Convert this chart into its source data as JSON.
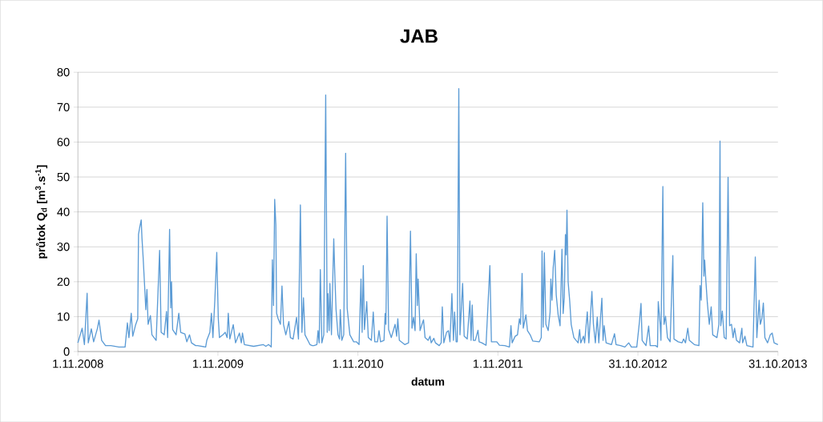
{
  "chart_data": {
    "type": "line",
    "title": "JAB",
    "xlabel": "datum",
    "ylabel": "průtok Q$_{d}$ [m$^{3}$.s$^{-1}$]",
    "color": "#5b9bd5",
    "grid": "y",
    "xlim": [
      "2008-11-01",
      "2013-10-31"
    ],
    "ylim": [
      0,
      80
    ],
    "yticks": [
      0,
      10,
      20,
      30,
      40,
      50,
      60,
      70,
      80
    ],
    "xticks": [
      {
        "value": "2008-11-01",
        "label": "1.11.2008"
      },
      {
        "value": "2009-11-01",
        "label": "1.11.2009"
      },
      {
        "value": "2010-11-01",
        "label": "1.11.2010"
      },
      {
        "value": "2011-11-01",
        "label": "1.11.2011"
      },
      {
        "value": "2012-10-31",
        "label": "31.10.2012"
      },
      {
        "value": "2013-10-31",
        "label": "31.10.2013"
      }
    ],
    "x": [
      "2008-11-01",
      "2008-11-12",
      "2008-11-18",
      "2008-11-25",
      "2008-11-28",
      "2008-12-06",
      "2008-12-12",
      "2008-12-22",
      "2008-12-26",
      "2009-01-02",
      "2009-01-12",
      "2009-01-26",
      "2009-02-16",
      "2009-03-04",
      "2009-03-10",
      "2009-03-14",
      "2009-03-20",
      "2009-03-24",
      "2009-03-31",
      "2009-04-06",
      "2009-04-08",
      "2009-04-11",
      "2009-04-15",
      "2009-04-17",
      "2009-04-20",
      "2009-04-24",
      "2009-04-27",
      "2009-04-30",
      "2009-05-03",
      "2009-05-09",
      "2009-05-13",
      "2009-05-24",
      "2009-06-02",
      "2009-06-06",
      "2009-06-14",
      "2009-06-20",
      "2009-06-23",
      "2009-06-28",
      "2009-07-01",
      "2009-07-03",
      "2009-07-06",
      "2009-07-15",
      "2009-07-22",
      "2009-07-27",
      "2009-08-07",
      "2009-08-12",
      "2009-08-19",
      "2009-08-24",
      "2009-09-04",
      "2009-09-09",
      "2009-09-30",
      "2009-10-03",
      "2009-10-11",
      "2009-10-15",
      "2009-10-19",
      "2009-10-24",
      "2009-10-29",
      "2009-11-02",
      "2009-11-05",
      "2009-11-14",
      "2009-11-20",
      "2009-11-25",
      "2009-11-28",
      "2009-12-02",
      "2009-12-11",
      "2009-12-17",
      "2009-12-27",
      "2010-01-01",
      "2010-01-04",
      "2010-01-09",
      "2010-02-02",
      "2010-02-27",
      "2010-03-06",
      "2010-03-13",
      "2010-03-20",
      "2010-03-23",
      "2010-03-26",
      "2010-03-29",
      "2010-04-01",
      "2010-04-03",
      "2010-04-07",
      "2010-04-13",
      "2010-04-17",
      "2010-04-21",
      "2010-04-27",
      "2010-05-05",
      "2010-05-09",
      "2010-05-16",
      "2010-05-25",
      "2010-05-30",
      "2010-06-04",
      "2010-06-08",
      "2010-06-12",
      "2010-06-16",
      "2010-06-29",
      "2010-07-05",
      "2010-07-09",
      "2010-07-17",
      "2010-07-20",
      "2010-07-23",
      "2010-07-26",
      "2010-07-30",
      "2010-08-04",
      "2010-08-09",
      "2010-08-13",
      "2010-08-15",
      "2010-08-18",
      "2010-08-20",
      "2010-08-24",
      "2010-08-30",
      "2010-09-02",
      "2010-09-05",
      "2010-09-10",
      "2010-09-14",
      "2010-09-16",
      "2010-09-20",
      "2010-09-25",
      "2010-09-30",
      "2010-10-04",
      "2010-10-11",
      "2010-10-21",
      "2010-10-28",
      "2010-11-04",
      "2010-11-09",
      "2010-11-12",
      "2010-11-15",
      "2010-11-18",
      "2010-11-24",
      "2010-11-28",
      "2010-12-06",
      "2010-12-11",
      "2010-12-15",
      "2010-12-22",
      "2010-12-26",
      "2010-12-30",
      "2011-01-08",
      "2011-01-11",
      "2011-01-13",
      "2011-01-16",
      "2011-01-20",
      "2011-01-27",
      "2011-02-06",
      "2011-02-10",
      "2011-02-13",
      "2011-02-17",
      "2011-03-03",
      "2011-03-13",
      "2011-03-18",
      "2011-03-22",
      "2011-03-26",
      "2011-03-30",
      "2011-04-02",
      "2011-04-05",
      "2011-04-07",
      "2011-04-12",
      "2011-04-17",
      "2011-04-21",
      "2011-04-25",
      "2011-05-03",
      "2011-05-08",
      "2011-05-11",
      "2011-05-18",
      "2011-05-22",
      "2011-06-01",
      "2011-06-06",
      "2011-06-09",
      "2011-06-13",
      "2011-06-20",
      "2011-06-25",
      "2011-06-29",
      "2011-07-04",
      "2011-07-08",
      "2011-07-11",
      "2011-07-15",
      "2011-07-18",
      "2011-07-22",
      "2011-07-25",
      "2011-08-01",
      "2011-08-05",
      "2011-08-13",
      "2011-08-20",
      "2011-08-23",
      "2011-08-26",
      "2011-08-29",
      "2011-09-03",
      "2011-09-10",
      "2011-09-13",
      "2011-09-20",
      "2011-10-01",
      "2011-10-11",
      "2011-10-15",
      "2011-10-29",
      "2011-11-05",
      "2011-11-19",
      "2011-12-01",
      "2011-12-05",
      "2011-12-08",
      "2011-12-16",
      "2011-12-22",
      "2011-12-27",
      "2011-12-30",
      "2012-01-03",
      "2012-01-06",
      "2012-01-13",
      "2012-01-17",
      "2012-01-24",
      "2012-01-31",
      "2012-02-17",
      "2012-02-22",
      "2012-02-24",
      "2012-02-27",
      "2012-03-01",
      "2012-03-05",
      "2012-03-11",
      "2012-03-16",
      "2012-03-18",
      "2012-03-21",
      "2012-03-24",
      "2012-03-28",
      "2012-04-01",
      "2012-04-06",
      "2012-04-11",
      "2012-04-16",
      "2012-04-19",
      "2012-04-22",
      "2012-04-25",
      "2012-04-27",
      "2012-04-29",
      "2012-05-02",
      "2012-05-06",
      "2012-05-10",
      "2012-05-17",
      "2012-05-28",
      "2012-06-01",
      "2012-06-04",
      "2012-06-11",
      "2012-06-14",
      "2012-06-21",
      "2012-06-25",
      "2012-07-03",
      "2012-07-07",
      "2012-07-12",
      "2012-07-17",
      "2012-07-21",
      "2012-07-29",
      "2012-08-01",
      "2012-08-04",
      "2012-08-09",
      "2012-08-23",
      "2012-08-31",
      "2012-09-04",
      "2012-09-16",
      "2012-09-27",
      "2012-10-07",
      "2012-10-14",
      "2012-10-28",
      "2012-11-04",
      "2012-11-08",
      "2012-11-11",
      "2012-11-21",
      "2012-11-28",
      "2012-12-02",
      "2012-12-16",
      "2012-12-21",
      "2012-12-23",
      "2012-12-28",
      "2012-12-30",
      "2013-01-04",
      "2013-01-07",
      "2013-01-11",
      "2013-01-16",
      "2013-01-23",
      "2013-01-30",
      "2013-02-02",
      "2013-02-13",
      "2013-02-23",
      "2013-02-27",
      "2013-03-04",
      "2013-03-10",
      "2013-03-14",
      "2013-03-27",
      "2013-04-08",
      "2013-04-11",
      "2013-04-14",
      "2013-04-18",
      "2013-04-21",
      "2013-04-23",
      "2013-04-26",
      "2013-04-30",
      "2013-05-05",
      "2013-05-10",
      "2013-05-14",
      "2013-05-25",
      "2013-05-30",
      "2013-06-02",
      "2013-06-04",
      "2013-06-08",
      "2013-06-13",
      "2013-06-18",
      "2013-06-23",
      "2013-06-27",
      "2013-07-02",
      "2013-07-06",
      "2013-07-10",
      "2013-07-15",
      "2013-07-23",
      "2013-07-29",
      "2013-07-31",
      "2013-08-06",
      "2013-08-11",
      "2013-08-27",
      "2013-09-02",
      "2013-09-06",
      "2013-09-12",
      "2013-09-15",
      "2013-09-19",
      "2013-09-23",
      "2013-09-27",
      "2013-10-04",
      "2013-10-11",
      "2013-10-16",
      "2013-10-21",
      "2013-10-31"
    ],
    "values": [
      2.5,
      6.7,
      2,
      16.7,
      2.5,
      6.5,
      2.8,
      6.7,
      9,
      3.2,
      1.7,
      1.7,
      1.3,
      1.3,
      8.2,
      4,
      11,
      4.4,
      7.5,
      9.4,
      33.6,
      35.5,
      37.7,
      32.5,
      27,
      18.6,
      12,
      17.8,
      7.8,
      10.3,
      4.8,
      3.2,
      29,
      5.5,
      4.8,
      11.5,
      4,
      35,
      12.5,
      20,
      6.3,
      4.8,
      11,
      5.5,
      5,
      2.8,
      4.8,
      2.5,
      1.7,
      1.7,
      1.3,
      3.2,
      5.5,
      11,
      4,
      14.8,
      28.4,
      9.4,
      4,
      4.8,
      5.5,
      4,
      11,
      3.6,
      7.7,
      2.5,
      5.3,
      2.5,
      5.3,
      2,
      1.5,
      2,
      1.5,
      2,
      1.3,
      26.3,
      13.2,
      43.6,
      36.3,
      11,
      9.4,
      7.8,
      18.8,
      7.8,
      4.8,
      8.6,
      4,
      3.6,
      9.8,
      3.6,
      42,
      5.5,
      15.4,
      4.8,
      2,
      1.7,
      1.7,
      2,
      6,
      2.5,
      23.5,
      2.5,
      4.8,
      73.5,
      5.5,
      16.6,
      6,
      19.5,
      4.8,
      32.3,
      21.2,
      12,
      4.8,
      3.6,
      12,
      3.2,
      4.8,
      56.8,
      12.4,
      4.8,
      2.8,
      2.8,
      2,
      20.8,
      5.5,
      24.6,
      6.3,
      14.3,
      4,
      3.2,
      11.3,
      2.8,
      2.8,
      6,
      2.8,
      3.2,
      10.9,
      7.8,
      38.8,
      6.3,
      4,
      7.8,
      4.4,
      9.4,
      3.2,
      2,
      2.5,
      34.5,
      6.7,
      9.8,
      6,
      28,
      13.2,
      20.8,
      6,
      7.8,
      9.1,
      4,
      3.2,
      4.4,
      2.5,
      3.8,
      2.5,
      1.7,
      2.5,
      12.8,
      2.5,
      5.5,
      6,
      2.8,
      16.6,
      3.2,
      11.3,
      2.8,
      2.8,
      75.3,
      4.8,
      19.5,
      4.4,
      3.6,
      14.5,
      3.2,
      13.3,
      3.2,
      3.2,
      6.1,
      2.8,
      2.5,
      1.8,
      24.6,
      2.8,
      2.8,
      1.8,
      1.7,
      1.3,
      7.4,
      2.5,
      4.4,
      4.8,
      9.4,
      7.8,
      22.4,
      6.7,
      10.5,
      6,
      4.8,
      3,
      2.8,
      4,
      28.8,
      7,
      28.3,
      7.8,
      6,
      11.3,
      20.8,
      14.7,
      23.9,
      29,
      16.2,
      10.5,
      7.4,
      29.3,
      10.9,
      15.5,
      33.5,
      27.7,
      40.5,
      20,
      14.7,
      7.8,
      4,
      2.5,
      6.3,
      2.5,
      4.4,
      2.5,
      11.4,
      2.5,
      17.2,
      7.8,
      2.5,
      9.9,
      2.5,
      15.3,
      3.2,
      7.4,
      2.5,
      2,
      5.1,
      2,
      1.7,
      1.3,
      2.5,
      1.3,
      1.3,
      8.6,
      13.8,
      3.2,
      1.7,
      7.3,
      1.7,
      1.7,
      1.3,
      14.3,
      7.8,
      3.2,
      47.3,
      7.8,
      10.1,
      4,
      2.8,
      27.5,
      3.6,
      2.8,
      2.5,
      3.6,
      2.5,
      6.7,
      3.2,
      2,
      1.7,
      18.9,
      14.7,
      42.6,
      21.6,
      26.2,
      20.4,
      13.9,
      7.8,
      12.8,
      4.8,
      4,
      7.8,
      60.3,
      7.4,
      11.6,
      4,
      3.6,
      49.9,
      7.4,
      7.8,
      4,
      6.7,
      3.2,
      2.5,
      6.7,
      2.5,
      4.4,
      1.7,
      1.3,
      27.1,
      4,
      14.7,
      7.8,
      9.4,
      13.9,
      4,
      2.5,
      4.8,
      5.3,
      2.5,
      2
    ]
  }
}
